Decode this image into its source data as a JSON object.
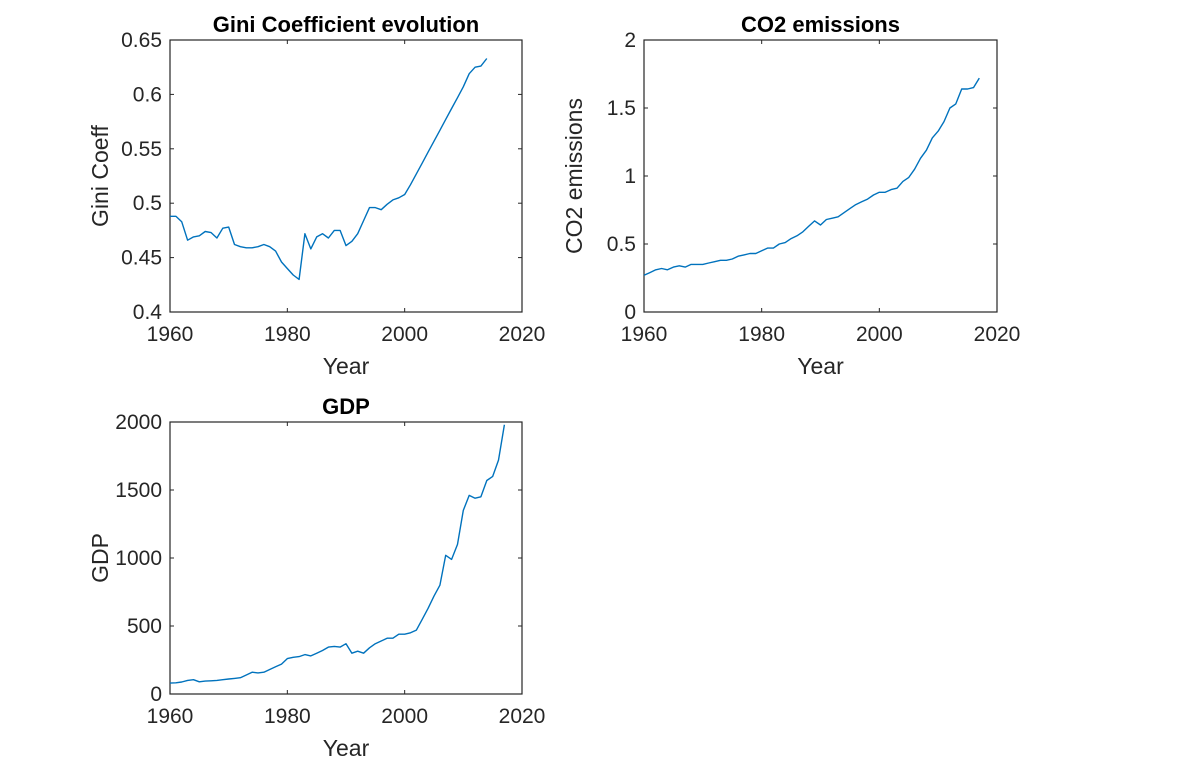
{
  "colors": {
    "line": "#0072BD",
    "axes": "#262626",
    "background": "#ffffff"
  },
  "chart_data": [
    {
      "id": "gini",
      "type": "line",
      "title": "Gini Coefficient evolution",
      "xlabel": "Year",
      "ylabel": "Gini Coeff",
      "xlim": [
        1960,
        2020
      ],
      "ylim": [
        0.4,
        0.65
      ],
      "xticks": [
        1960,
        1980,
        2000,
        2020
      ],
      "xtick_labels": [
        "1960",
        "1980",
        "2000",
        "2020"
      ],
      "yticks": [
        0.4,
        0.45,
        0.5,
        0.55,
        0.6,
        0.65
      ],
      "ytick_labels": [
        "0.4",
        "0.45",
        "0.5",
        "0.55",
        "0.6",
        "0.65"
      ],
      "grid": false,
      "series": [
        {
          "x": [
            1960,
            1961,
            1962,
            1963,
            1964,
            1965,
            1966,
            1967,
            1968,
            1969,
            1970,
            1971,
            1972,
            1973,
            1974,
            1975,
            1976,
            1977,
            1978,
            1979,
            1980,
            1981,
            1982,
            1983,
            1984,
            1985,
            1986,
            1987,
            1988,
            1989,
            1990,
            1991,
            1992,
            1993,
            1994,
            1995,
            1996,
            1997,
            1998,
            1999,
            2000,
            2001,
            2002,
            2003,
            2004,
            2005,
            2006,
            2007,
            2008,
            2009,
            2010,
            2011,
            2012,
            2013,
            2014
          ],
          "y": [
            0.488,
            0.488,
            0.483,
            0.466,
            0.469,
            0.47,
            0.474,
            0.473,
            0.468,
            0.477,
            0.478,
            0.462,
            0.46,
            0.459,
            0.459,
            0.46,
            0.462,
            0.46,
            0.456,
            0.446,
            0.44,
            0.434,
            0.43,
            0.472,
            0.458,
            0.469,
            0.472,
            0.468,
            0.475,
            0.475,
            0.461,
            0.465,
            0.472,
            0.484,
            0.496,
            0.496,
            0.494,
            0.499,
            0.503,
            0.505,
            0.508,
            0.517,
            0.527,
            0.537,
            0.547,
            0.557,
            0.567,
            0.577,
            0.587,
            0.597,
            0.607,
            0.619,
            0.625,
            0.626,
            0.633
          ]
        }
      ]
    },
    {
      "id": "co2",
      "type": "line",
      "title": "CO2 emissions",
      "xlabel": "Year",
      "ylabel": "CO2 emissions",
      "xlim": [
        1960,
        2020
      ],
      "ylim": [
        0,
        2
      ],
      "xticks": [
        1960,
        1980,
        2000,
        2020
      ],
      "xtick_labels": [
        "1960",
        "1980",
        "2000",
        "2020"
      ],
      "yticks": [
        0,
        0.5,
        1,
        1.5,
        2
      ],
      "ytick_labels": [
        "0",
        "0.5",
        "1",
        "1.5",
        "2"
      ],
      "grid": false,
      "series": [
        {
          "x": [
            1960,
            1961,
            1962,
            1963,
            1964,
            1965,
            1966,
            1967,
            1968,
            1969,
            1970,
            1971,
            1972,
            1973,
            1974,
            1975,
            1976,
            1977,
            1978,
            1979,
            1980,
            1981,
            1982,
            1983,
            1984,
            1985,
            1986,
            1987,
            1988,
            1989,
            1990,
            1991,
            1992,
            1993,
            1994,
            1995,
            1996,
            1997,
            1998,
            1999,
            2000,
            2001,
            2002,
            2003,
            2004,
            2005,
            2006,
            2007,
            2008,
            2009,
            2010,
            2011,
            2012,
            2013,
            2014,
            2015,
            2016,
            2017
          ],
          "y": [
            0.27,
            0.29,
            0.31,
            0.32,
            0.31,
            0.33,
            0.34,
            0.33,
            0.35,
            0.35,
            0.35,
            0.36,
            0.37,
            0.38,
            0.38,
            0.39,
            0.41,
            0.42,
            0.43,
            0.43,
            0.45,
            0.47,
            0.47,
            0.5,
            0.51,
            0.54,
            0.56,
            0.59,
            0.63,
            0.67,
            0.64,
            0.68,
            0.69,
            0.7,
            0.73,
            0.76,
            0.79,
            0.81,
            0.83,
            0.86,
            0.88,
            0.88,
            0.9,
            0.91,
            0.96,
            0.99,
            1.05,
            1.13,
            1.19,
            1.28,
            1.33,
            1.4,
            1.5,
            1.53,
            1.64,
            1.64,
            1.65,
            1.72
          ]
        }
      ]
    },
    {
      "id": "gdp",
      "type": "line",
      "title": "GDP",
      "xlabel": "Year",
      "ylabel": "GDP",
      "xlim": [
        1960,
        2020
      ],
      "ylim": [
        0,
        2000
      ],
      "xticks": [
        1960,
        1980,
        2000,
        2020
      ],
      "xtick_labels": [
        "1960",
        "1980",
        "2000",
        "2020"
      ],
      "yticks": [
        0,
        500,
        1000,
        1500,
        2000
      ],
      "ytick_labels": [
        "0",
        "500",
        "1000",
        "1500",
        "2000"
      ],
      "grid": false,
      "series": [
        {
          "x": [
            1960,
            1961,
            1962,
            1963,
            1964,
            1965,
            1966,
            1967,
            1968,
            1969,
            1970,
            1971,
            1972,
            1973,
            1974,
            1975,
            1976,
            1977,
            1978,
            1979,
            1980,
            1981,
            1982,
            1983,
            1984,
            1985,
            1986,
            1987,
            1988,
            1989,
            1990,
            1991,
            1992,
            1993,
            1994,
            1995,
            1996,
            1997,
            1998,
            1999,
            2000,
            2001,
            2002,
            2003,
            2004,
            2005,
            2006,
            2007,
            2008,
            2009,
            2010,
            2011,
            2012,
            2013,
            2014,
            2015,
            2016,
            2017
          ],
          "y": [
            80,
            82,
            88,
            100,
            105,
            90,
            95,
            97,
            100,
            105,
            110,
            115,
            120,
            140,
            160,
            155,
            160,
            180,
            200,
            220,
            260,
            270,
            275,
            290,
            280,
            300,
            320,
            345,
            350,
            345,
            370,
            300,
            315,
            300,
            340,
            370,
            390,
            410,
            410,
            440,
            440,
            450,
            470,
            550,
            630,
            720,
            800,
            1020,
            990,
            1100,
            1350,
            1460,
            1440,
            1450,
            1570,
            1600,
            1720,
            1980
          ]
        }
      ]
    }
  ]
}
